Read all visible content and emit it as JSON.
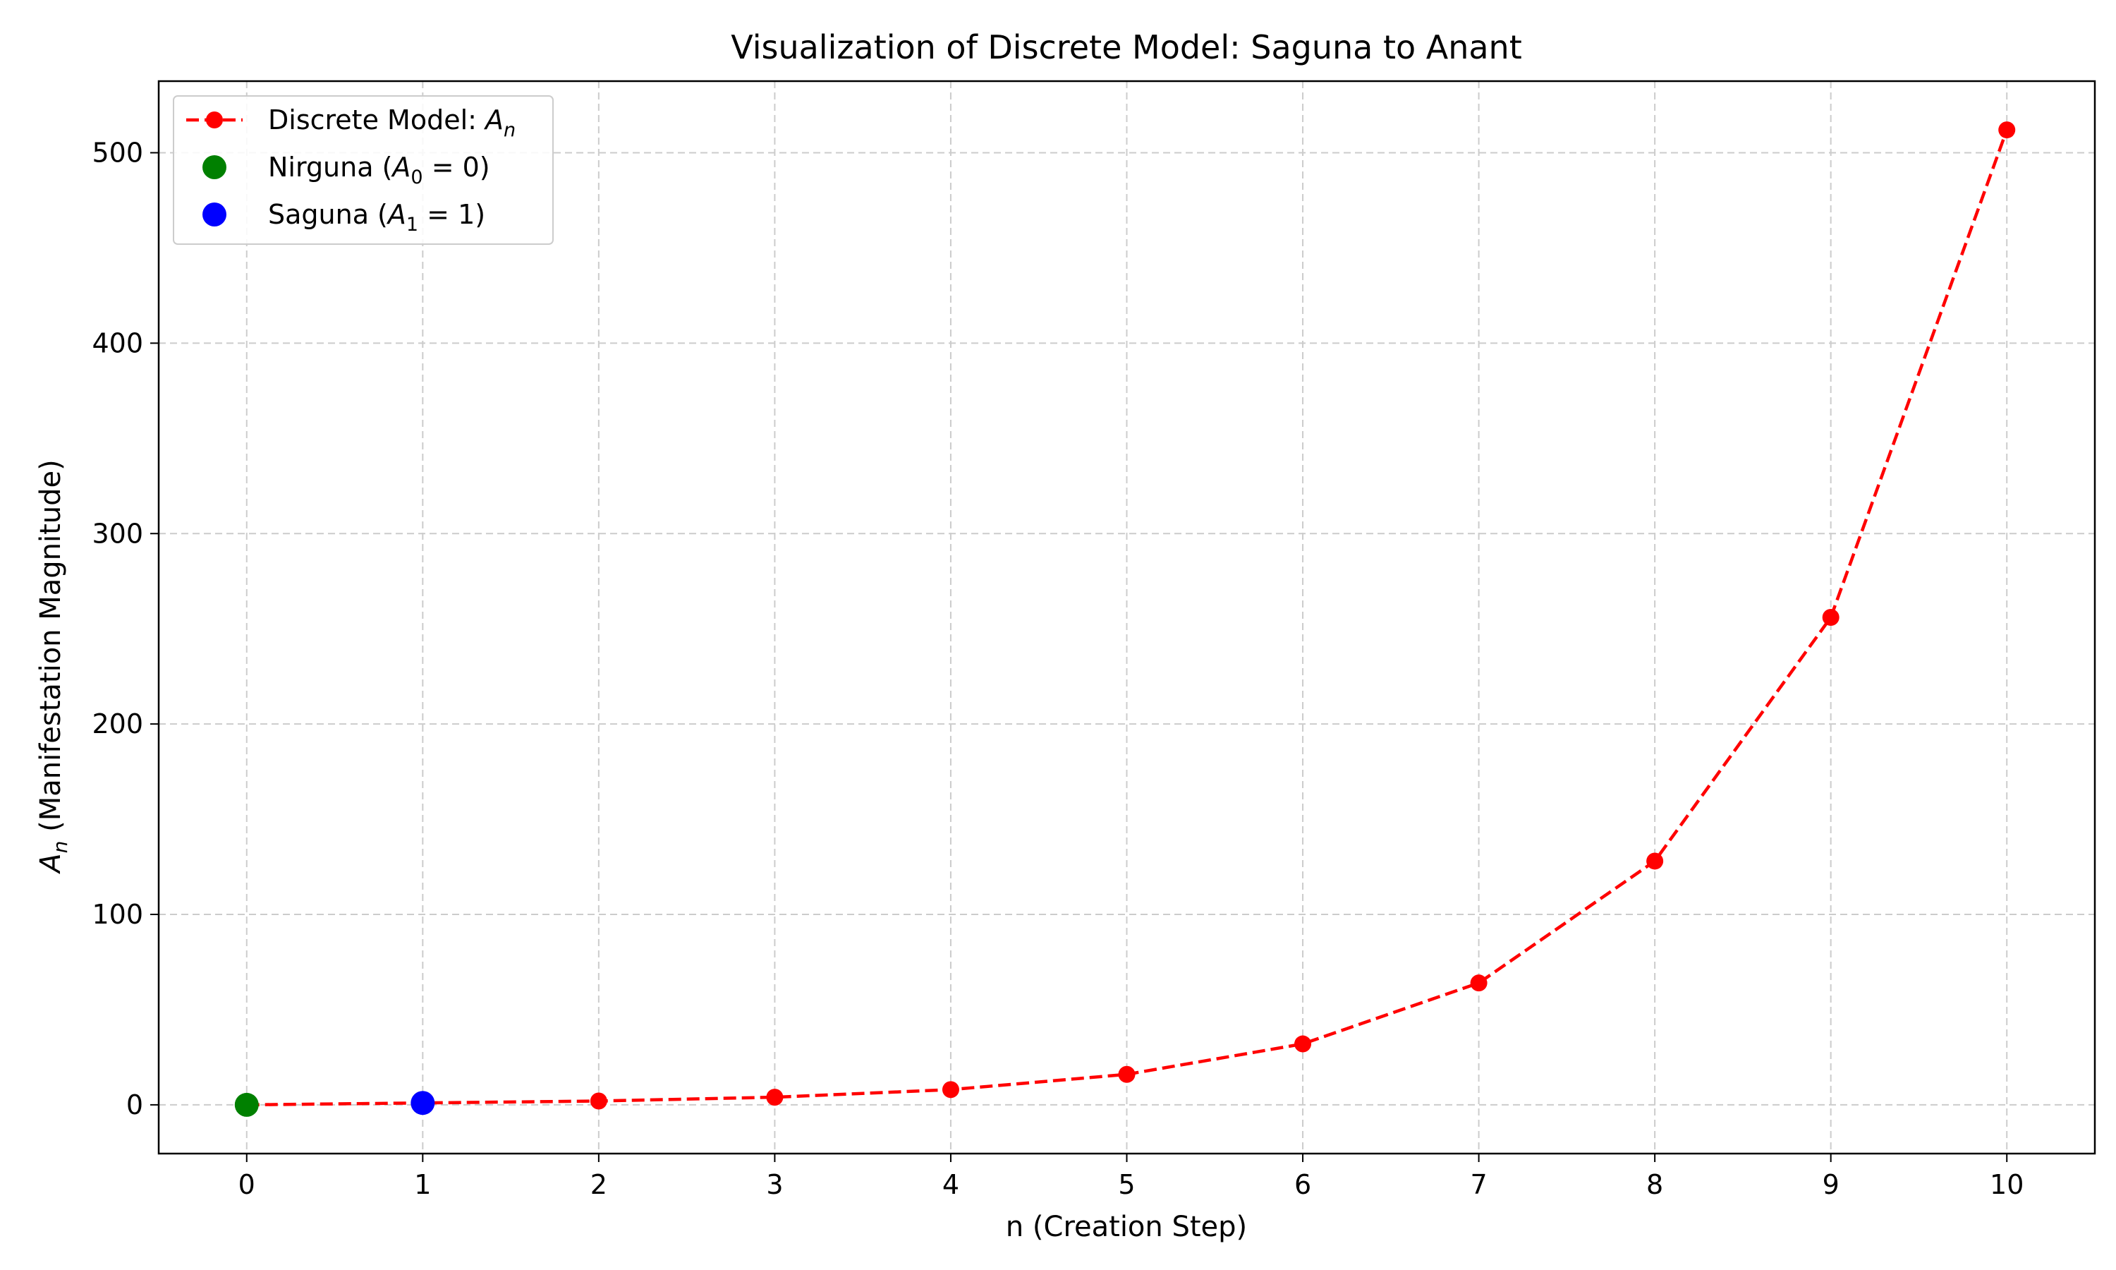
{
  "chart_data": {
    "type": "line",
    "title": "Visualization of Discrete Model: Saguna to Anant",
    "xlabel": "n (Creation Step)",
    "ylabel": "A",
    "ylabel_sub": "n",
    "ylabel_rest": " (Manifestation Magnitude)",
    "x": [
      0,
      1,
      2,
      3,
      4,
      5,
      6,
      7,
      8,
      9,
      10
    ],
    "xticks": [
      "0",
      "1",
      "2",
      "3",
      "4",
      "5",
      "6",
      "7",
      "8",
      "9",
      "10"
    ],
    "yticks": [
      "0",
      "100",
      "200",
      "300",
      "400",
      "500"
    ],
    "xlim": [
      -0.5,
      10.5
    ],
    "ylim": [
      -25.6,
      537.6
    ],
    "grid": true,
    "legend_position": "top-left",
    "series": [
      {
        "name": "Discrete Model: A_n",
        "style": "dashed-line-with-markers",
        "color": "#ff0000",
        "values": [
          0,
          1,
          2,
          4,
          8,
          16,
          32,
          64,
          128,
          256,
          512
        ]
      }
    ],
    "highlight_points": [
      {
        "name": "Nirguna (A_0 = 0)",
        "x": 0,
        "y": 0,
        "color": "#008000"
      },
      {
        "name": "Saguna (A_1 = 1)",
        "x": 1,
        "y": 1,
        "color": "#0000ff"
      }
    ],
    "legend": [
      {
        "prefix": "Discrete Model: ",
        "var": "A",
        "sub": "n",
        "suffix": "",
        "color": "#ff0000",
        "kind": "line"
      },
      {
        "prefix": "Nirguna (",
        "var": "A",
        "sub": "0",
        "suffix": " = 0)",
        "color": "#008000",
        "kind": "marker"
      },
      {
        "prefix": "Saguna (",
        "var": "A",
        "sub": "1",
        "suffix": " = 1)",
        "color": "#0000ff",
        "kind": "marker"
      }
    ]
  }
}
